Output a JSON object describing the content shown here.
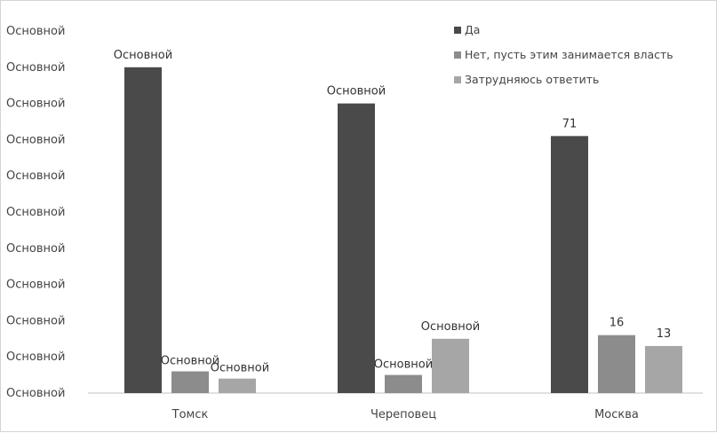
{
  "chart_data": {
    "type": "bar",
    "categories": [
      "Томск",
      "Череповец",
      "Москва"
    ],
    "series": [
      {
        "name": "Да",
        "color": "#4a4a4a",
        "values": [
          90,
          80,
          71
        ],
        "labels": [
          "Основной",
          "Основной",
          "71"
        ]
      },
      {
        "name": "Нет, пусть этим занимается власть",
        "color": "#8c8c8c",
        "values": [
          6,
          5,
          16
        ],
        "labels": [
          "Основной",
          "Основной",
          "16"
        ]
      },
      {
        "name": "Затрудняюсь ответить",
        "color": "#a6a6a6",
        "values": [
          4,
          15,
          13
        ],
        "labels": [
          "Основной",
          "Основной",
          "13"
        ]
      }
    ],
    "y_tick_labels": [
      "Основной",
      "Основной",
      "Основной",
      "Основной",
      "Основной",
      "Основной",
      "Основной",
      "Основной",
      "Основной",
      "Основной",
      "Основной"
    ],
    "ylim": [
      0,
      100
    ],
    "grid": false,
    "legend_position": "top-right"
  }
}
